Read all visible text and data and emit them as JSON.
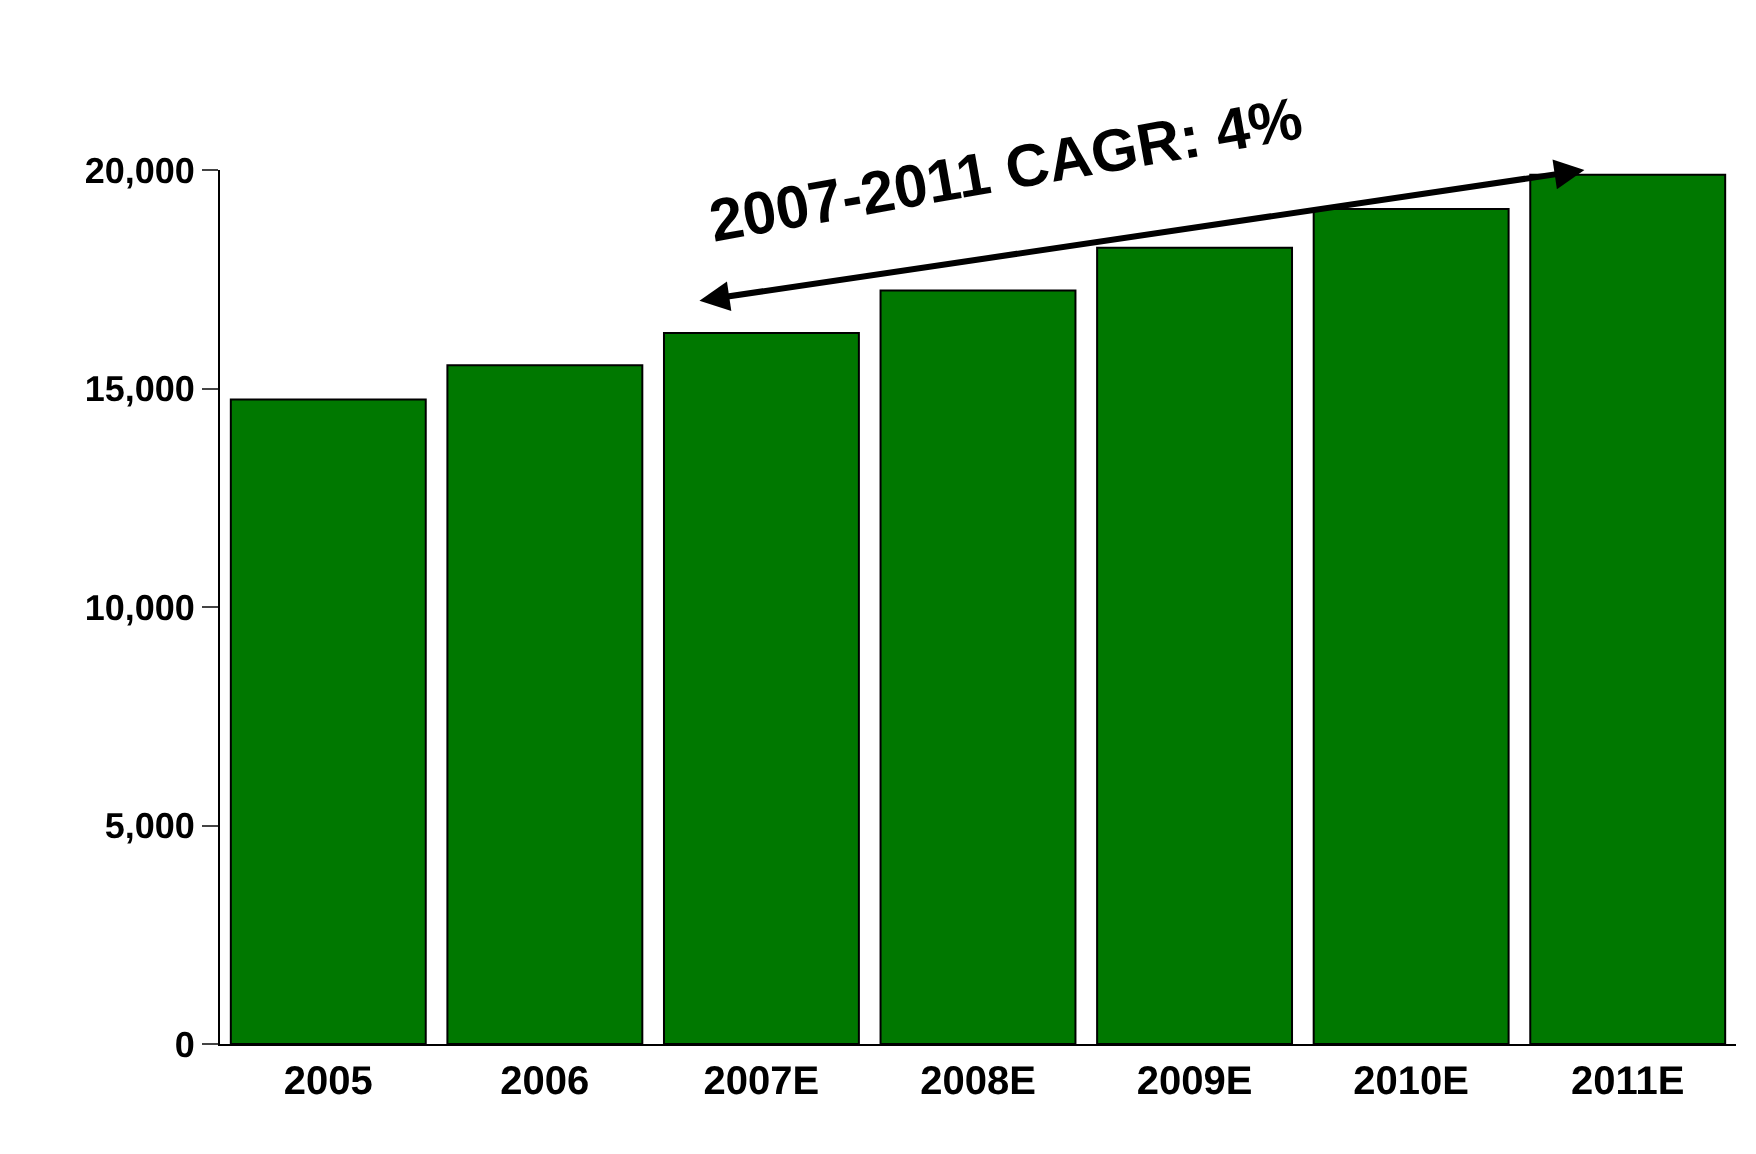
{
  "chart_data": {
    "type": "bar",
    "categories": [
      "2005",
      "2006",
      "2007E",
      "2008E",
      "2009E",
      "2010E",
      "2011E"
    ],
    "values": [
      14750,
      15530,
      16270,
      17240,
      18220,
      19110,
      19890
    ],
    "color": "#007800",
    "ylim": [
      0,
      20000
    ],
    "yticks": [
      {
        "value": 0,
        "label": "0"
      },
      {
        "value": 5000,
        "label": "5,000"
      },
      {
        "value": 10000,
        "label": "10,000"
      },
      {
        "value": 15000,
        "label": "15,000"
      },
      {
        "value": 20000,
        "label": "20,000"
      }
    ],
    "annotations": [
      "2007-2011 CAGR: 4%"
    ]
  }
}
